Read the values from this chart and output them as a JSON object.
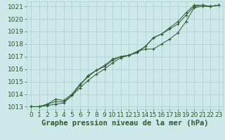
{
  "background_color": "#cce8e8",
  "grid_color": "#aacece",
  "line_color": "#2d5a2d",
  "title": "Graphe pression niveau de la mer (hPa)",
  "title_fontsize": 7.5,
  "tick_fontsize": 6.5,
  "xlim": [
    -0.5,
    23.5
  ],
  "ylim": [
    1012.8,
    1021.4
  ],
  "yticks": [
    1013,
    1014,
    1015,
    1016,
    1017,
    1018,
    1019,
    1020,
    1021
  ],
  "xticks": [
    0,
    1,
    2,
    3,
    4,
    5,
    6,
    7,
    8,
    9,
    10,
    11,
    12,
    13,
    14,
    15,
    16,
    17,
    18,
    19,
    20,
    21,
    22,
    23
  ],
  "series1_x": [
    0,
    1,
    2,
    3,
    4,
    5,
    6,
    7,
    8,
    9,
    10,
    11,
    12,
    13,
    14,
    15,
    16,
    17,
    18,
    19,
    20,
    21,
    22,
    23
  ],
  "series1_y": [
    1013.0,
    1013.0,
    1013.1,
    1013.2,
    1013.3,
    1013.9,
    1014.5,
    1015.1,
    1015.6,
    1016.0,
    1016.5,
    1016.9,
    1017.1,
    1017.4,
    1017.6,
    1017.6,
    1018.0,
    1018.4,
    1018.9,
    1019.8,
    1020.9,
    1021.0,
    1021.0,
    1021.1
  ],
  "series2_x": [
    0,
    1,
    2,
    3,
    4,
    5,
    6,
    7,
    8,
    9,
    10,
    11,
    12,
    13,
    14,
    15,
    16,
    17,
    18,
    19,
    20,
    21,
    22,
    23
  ],
  "series2_y": [
    1013.0,
    1013.0,
    1013.2,
    1013.6,
    1013.5,
    1014.0,
    1014.8,
    1015.4,
    1015.9,
    1016.2,
    1016.7,
    1017.0,
    1017.1,
    1017.3,
    1017.8,
    1018.5,
    1018.8,
    1019.2,
    1019.6,
    1020.3,
    1021.0,
    1021.1,
    1021.0,
    1021.1
  ],
  "series3_x": [
    0,
    1,
    2,
    3,
    4,
    5,
    6,
    7,
    8,
    9,
    10,
    11,
    12,
    13,
    14,
    15,
    16,
    17,
    18,
    19,
    20,
    21,
    22,
    23
  ],
  "series3_y": [
    1013.0,
    1013.0,
    1013.2,
    1013.4,
    1013.4,
    1013.9,
    1014.7,
    1015.5,
    1015.9,
    1016.3,
    1016.8,
    1017.0,
    1017.1,
    1017.4,
    1017.8,
    1018.5,
    1018.8,
    1019.3,
    1019.8,
    1020.5,
    1021.1,
    1021.1,
    1021.0,
    1021.1
  ],
  "lw": 0.7,
  "markersize": 3.0
}
